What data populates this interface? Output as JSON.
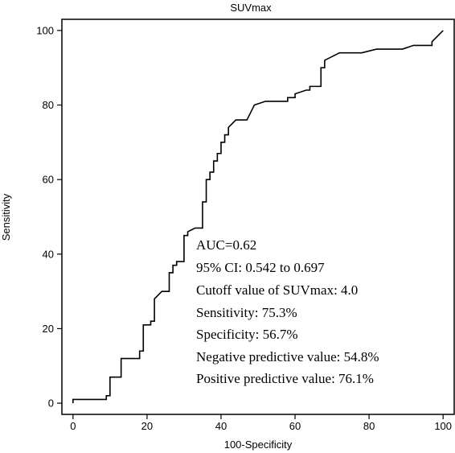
{
  "chart_data": {
    "type": "line",
    "title": "SUVmax",
    "xlabel": "100-Specificity",
    "ylabel": "Sensitivity",
    "xlim": [
      -3,
      103
    ],
    "ylim": [
      -3,
      103
    ],
    "x_ticks": [
      0,
      20,
      40,
      60,
      80,
      100
    ],
    "y_ticks": [
      0,
      20,
      40,
      60,
      80,
      100
    ],
    "x_tick_labels": [
      "0",
      "20",
      "40",
      "60",
      "80",
      "100"
    ],
    "y_tick_labels": [
      "0",
      "20",
      "40",
      "60",
      "80",
      "100"
    ],
    "grid": false,
    "legend": "none",
    "series": [
      {
        "color": "#000000",
        "x": [
          0,
          0,
          9,
          9,
          10,
          10,
          13,
          13,
          16,
          16,
          18,
          18,
          19,
          19,
          21,
          21,
          22,
          22,
          24,
          24,
          26,
          26,
          27,
          27,
          28,
          28,
          30,
          30,
          31,
          31,
          33,
          33,
          35,
          35,
          36,
          36,
          37,
          37,
          38,
          38,
          39,
          39,
          40,
          40,
          41,
          41,
          42,
          42,
          43,
          44,
          45,
          47,
          48,
          49,
          52,
          55,
          57,
          58,
          58,
          60,
          60,
          63,
          64,
          64,
          66,
          67,
          67,
          68,
          68,
          70,
          72,
          78,
          82,
          85,
          89,
          92,
          93,
          97,
          97,
          100
        ],
        "y": [
          0,
          1,
          1,
          2,
          2,
          7,
          7,
          12,
          12,
          12,
          12,
          14,
          14,
          21,
          21,
          22,
          22,
          28,
          30,
          30,
          30,
          35,
          35,
          37,
          37,
          38,
          38,
          45,
          45,
          46,
          47,
          47,
          47,
          54,
          54,
          60,
          60,
          62,
          62,
          65,
          65,
          67,
          67,
          70,
          70,
          72,
          72,
          74,
          75,
          76,
          76,
          76,
          78,
          80,
          81,
          81,
          81,
          81,
          82,
          82,
          83,
          84,
          84,
          85,
          85,
          85,
          90,
          90,
          92,
          93,
          94,
          94,
          95,
          95,
          95,
          96,
          96,
          96,
          97,
          100
        ]
      }
    ],
    "annotations": [
      "AUC=0.62",
      "95% CI: 0.542 to 0.697",
      "Cutoff value of SUVmax: 4.0",
      "Sensitivity: 75.3%",
      "Specificity: 56.7%",
      "Negative predictive value: 54.8%",
      "Positive predictive value: 76.1%"
    ]
  }
}
